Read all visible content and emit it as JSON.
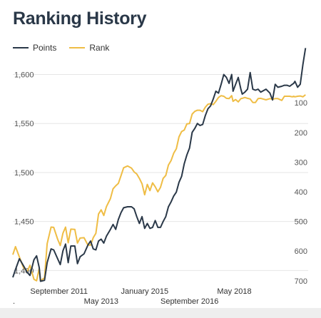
{
  "title": "Ranking History",
  "colors": {
    "points": "#2a3848",
    "rank": "#efbd45",
    "grid": "#e6e6e6",
    "axis_text": "#555555"
  },
  "chart_data": {
    "type": "line",
    "title": "Ranking History",
    "legend": {
      "position": "top-left",
      "entries": [
        "Points",
        "Rank"
      ]
    },
    "grid": true,
    "left_axis": {
      "label": "Points",
      "ticks": [
        1400,
        1450,
        1500,
        1550,
        1600
      ],
      "tick_labels": [
        "1,400",
        "1,450",
        "1,500",
        "1,550",
        "1,600"
      ],
      "range": [
        1385,
        1612
      ]
    },
    "right_axis": {
      "label": "Rank",
      "reversed": true,
      "ticks": [
        100,
        200,
        300,
        400,
        500,
        600,
        700
      ],
      "tick_labels": [
        "100",
        "200",
        "300",
        "400",
        "500",
        "600",
        "700"
      ],
      "range": [
        -35,
        715
      ]
    },
    "x_axis": {
      "range": [
        2010.0,
        2021.2
      ],
      "ticks_upper": [
        {
          "x": 2011.75,
          "label": "September 2011"
        },
        {
          "x": 2015.0,
          "label": "January 2015"
        },
        {
          "x": 2018.4,
          "label": "May 2018"
        }
      ],
      "ticks_lower": [
        {
          "x": 2013.35,
          "label": "May 2013"
        },
        {
          "x": 2016.7,
          "label": "September 2016"
        }
      ],
      "extra_label": "."
    },
    "series": [
      {
        "name": "Points",
        "axis": "left",
        "points": [
          [
            2010.0,
            1393
          ],
          [
            2010.1,
            1401
          ],
          [
            2010.25,
            1412
          ],
          [
            2010.4,
            1405
          ],
          [
            2010.55,
            1398
          ],
          [
            2010.65,
            1395
          ],
          [
            2010.8,
            1411
          ],
          [
            2010.9,
            1415
          ],
          [
            2011.0,
            1403
          ],
          [
            2011.05,
            1389
          ],
          [
            2011.2,
            1390
          ],
          [
            2011.3,
            1408
          ],
          [
            2011.45,
            1422
          ],
          [
            2011.55,
            1421
          ],
          [
            2011.7,
            1412
          ],
          [
            2011.8,
            1406
          ],
          [
            2011.9,
            1420
          ],
          [
            2012.0,
            1427
          ],
          [
            2012.1,
            1408
          ],
          [
            2012.2,
            1425
          ],
          [
            2012.35,
            1425
          ],
          [
            2012.45,
            1407
          ],
          [
            2012.55,
            1414
          ],
          [
            2012.7,
            1417
          ],
          [
            2012.85,
            1426
          ],
          [
            2012.95,
            1430
          ],
          [
            2013.05,
            1422
          ],
          [
            2013.15,
            1421
          ],
          [
            2013.25,
            1430
          ],
          [
            2013.35,
            1432
          ],
          [
            2013.45,
            1428
          ],
          [
            2013.55,
            1435
          ],
          [
            2013.7,
            1442
          ],
          [
            2013.8,
            1447
          ],
          [
            2013.9,
            1442
          ],
          [
            2014.0,
            1452
          ],
          [
            2014.1,
            1459
          ],
          [
            2014.2,
            1464
          ],
          [
            2014.35,
            1465
          ],
          [
            2014.5,
            1465
          ],
          [
            2014.6,
            1463
          ],
          [
            2014.7,
            1455
          ],
          [
            2014.8,
            1448
          ],
          [
            2014.9,
            1455
          ],
          [
            2015.0,
            1443
          ],
          [
            2015.1,
            1448
          ],
          [
            2015.2,
            1443
          ],
          [
            2015.3,
            1444
          ],
          [
            2015.4,
            1451
          ],
          [
            2015.5,
            1444
          ],
          [
            2015.6,
            1444
          ],
          [
            2015.7,
            1450
          ],
          [
            2015.8,
            1455
          ],
          [
            2015.9,
            1465
          ],
          [
            2016.0,
            1470
          ],
          [
            2016.1,
            1476
          ],
          [
            2016.2,
            1480
          ],
          [
            2016.3,
            1490
          ],
          [
            2016.4,
            1496
          ],
          [
            2016.5,
            1509
          ],
          [
            2016.6,
            1518
          ],
          [
            2016.7,
            1525
          ],
          [
            2016.8,
            1541
          ],
          [
            2016.9,
            1545
          ],
          [
            2017.0,
            1550
          ],
          [
            2017.1,
            1548
          ],
          [
            2017.2,
            1549
          ],
          [
            2017.3,
            1558
          ],
          [
            2017.4,
            1565
          ],
          [
            2017.5,
            1568
          ],
          [
            2017.6,
            1575
          ],
          [
            2017.7,
            1583
          ],
          [
            2017.8,
            1581
          ],
          [
            2017.9,
            1590
          ],
          [
            2018.0,
            1600
          ],
          [
            2018.1,
            1597
          ],
          [
            2018.2,
            1591
          ],
          [
            2018.3,
            1600
          ],
          [
            2018.35,
            1583
          ],
          [
            2018.45,
            1590
          ],
          [
            2018.55,
            1597
          ],
          [
            2018.65,
            1585
          ],
          [
            2018.7,
            1580
          ],
          [
            2018.8,
            1582
          ],
          [
            2018.9,
            1585
          ],
          [
            2019.0,
            1602
          ],
          [
            2019.1,
            1585
          ],
          [
            2019.2,
            1584
          ],
          [
            2019.3,
            1585
          ],
          [
            2019.4,
            1582
          ],
          [
            2019.6,
            1585
          ],
          [
            2019.75,
            1581
          ],
          [
            2019.85,
            1574
          ],
          [
            2019.95,
            1590
          ],
          [
            2020.05,
            1587
          ],
          [
            2020.2,
            1588
          ],
          [
            2020.3,
            1589
          ],
          [
            2020.4,
            1589
          ],
          [
            2020.5,
            1588
          ],
          [
            2020.6,
            1590
          ],
          [
            2020.65,
            1591
          ],
          [
            2020.7,
            1593
          ],
          [
            2020.8,
            1587
          ],
          [
            2020.9,
            1590
          ],
          [
            2021.0,
            1610
          ],
          [
            2021.1,
            1627
          ]
        ]
      },
      {
        "name": "Rank",
        "axis": "right",
        "points": [
          [
            2010.0,
            612
          ],
          [
            2010.1,
            585
          ],
          [
            2010.25,
            620
          ],
          [
            2010.4,
            655
          ],
          [
            2010.55,
            668
          ],
          [
            2010.65,
            648
          ],
          [
            2010.8,
            695
          ],
          [
            2010.9,
            700
          ],
          [
            2011.0,
            658
          ],
          [
            2011.05,
            700
          ],
          [
            2011.2,
            690
          ],
          [
            2011.3,
            575
          ],
          [
            2011.45,
            519
          ],
          [
            2011.55,
            520
          ],
          [
            2011.7,
            560
          ],
          [
            2011.8,
            581
          ],
          [
            2011.9,
            540
          ],
          [
            2012.0,
            519
          ],
          [
            2012.1,
            572
          ],
          [
            2012.2,
            526
          ],
          [
            2012.35,
            527
          ],
          [
            2012.45,
            573
          ],
          [
            2012.55,
            556
          ],
          [
            2012.7,
            555
          ],
          [
            2012.85,
            580
          ],
          [
            2012.95,
            580
          ],
          [
            2013.05,
            555
          ],
          [
            2013.15,
            540
          ],
          [
            2013.25,
            475
          ],
          [
            2013.35,
            461
          ],
          [
            2013.45,
            480
          ],
          [
            2013.55,
            450
          ],
          [
            2013.7,
            423
          ],
          [
            2013.8,
            390
          ],
          [
            2013.9,
            380
          ],
          [
            2014.0,
            372
          ],
          [
            2014.1,
            346
          ],
          [
            2014.2,
            319
          ],
          [
            2014.35,
            313
          ],
          [
            2014.5,
            320
          ],
          [
            2014.6,
            333
          ],
          [
            2014.7,
            340
          ],
          [
            2014.8,
            355
          ],
          [
            2014.9,
            373
          ],
          [
            2015.0,
            410
          ],
          [
            2015.1,
            375
          ],
          [
            2015.2,
            396
          ],
          [
            2015.3,
            370
          ],
          [
            2015.4,
            383
          ],
          [
            2015.5,
            400
          ],
          [
            2015.6,
            385
          ],
          [
            2015.7,
            355
          ],
          [
            2015.8,
            345
          ],
          [
            2015.9,
            310
          ],
          [
            2016.0,
            295
          ],
          [
            2016.1,
            270
          ],
          [
            2016.2,
            255
          ],
          [
            2016.3,
            215
          ],
          [
            2016.4,
            197
          ],
          [
            2016.5,
            192
          ],
          [
            2016.6,
            171
          ],
          [
            2016.7,
            170
          ],
          [
            2016.8,
            138
          ],
          [
            2016.9,
            129
          ],
          [
            2017.0,
            125
          ],
          [
            2017.1,
            125
          ],
          [
            2017.2,
            130
          ],
          [
            2017.3,
            115
          ],
          [
            2017.4,
            105
          ],
          [
            2017.5,
            103
          ],
          [
            2017.6,
            106
          ],
          [
            2017.7,
            95
          ],
          [
            2017.8,
            82
          ],
          [
            2017.9,
            76
          ],
          [
            2018.0,
            78
          ],
          [
            2018.1,
            85
          ],
          [
            2018.2,
            86
          ],
          [
            2018.3,
            76
          ],
          [
            2018.35,
            95
          ],
          [
            2018.45,
            89
          ],
          [
            2018.55,
            97
          ],
          [
            2018.65,
            86
          ],
          [
            2018.7,
            85
          ],
          [
            2018.8,
            82
          ],
          [
            2018.9,
            85
          ],
          [
            2019.0,
            87
          ],
          [
            2019.1,
            99
          ],
          [
            2019.2,
            99
          ],
          [
            2019.3,
            86
          ],
          [
            2019.4,
            85
          ],
          [
            2019.6,
            90
          ],
          [
            2019.75,
            86
          ],
          [
            2019.85,
            88
          ],
          [
            2019.95,
            86
          ],
          [
            2020.05,
            86
          ],
          [
            2020.2,
            92
          ],
          [
            2020.3,
            78
          ],
          [
            2020.4,
            78
          ],
          [
            2020.5,
            78
          ],
          [
            2020.6,
            80
          ],
          [
            2020.65,
            78
          ],
          [
            2020.7,
            80
          ],
          [
            2020.8,
            78
          ],
          [
            2020.9,
            77
          ],
          [
            2021.0,
            80
          ],
          [
            2021.1,
            73
          ]
        ]
      }
    ]
  }
}
